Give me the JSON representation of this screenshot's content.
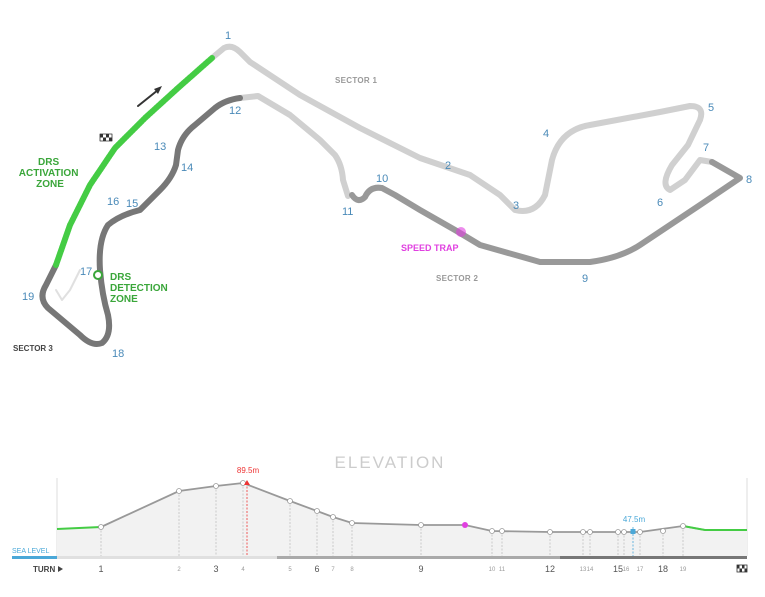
{
  "map": {
    "sectors": {
      "s1": "SECTOR 1",
      "s2": "SECTOR 2",
      "s3": "SECTOR 3"
    },
    "drs_activation": [
      "DRS",
      "ACTIVATION",
      "ZONE"
    ],
    "drs_detection": [
      "DRS",
      "DETECTION",
      "ZONE"
    ],
    "speed_trap": "SPEED TRAP",
    "turns": [
      "1",
      "2",
      "3",
      "4",
      "5",
      "6",
      "7",
      "8",
      "9",
      "10",
      "11",
      "12",
      "13",
      "14",
      "15",
      "16",
      "17",
      "18",
      "19"
    ]
  },
  "elevation": {
    "title": "ELEVATION",
    "max_label": "89.5m",
    "min_label": "47.5m",
    "sea_level": "SEA LEVEL",
    "turn_label": "TURN",
    "turn_ticks": [
      "1",
      "2",
      "3",
      "4",
      "5",
      "6",
      "7",
      "8",
      "9",
      "10",
      "11",
      "12",
      "13",
      "14",
      "15",
      "16",
      "17",
      "18",
      "19"
    ],
    "colors": {
      "profile": "#888888",
      "drs": "#44cc44",
      "max": "#e33333",
      "min": "#4aa8d8",
      "speed_trap": "#e040e0"
    }
  }
}
